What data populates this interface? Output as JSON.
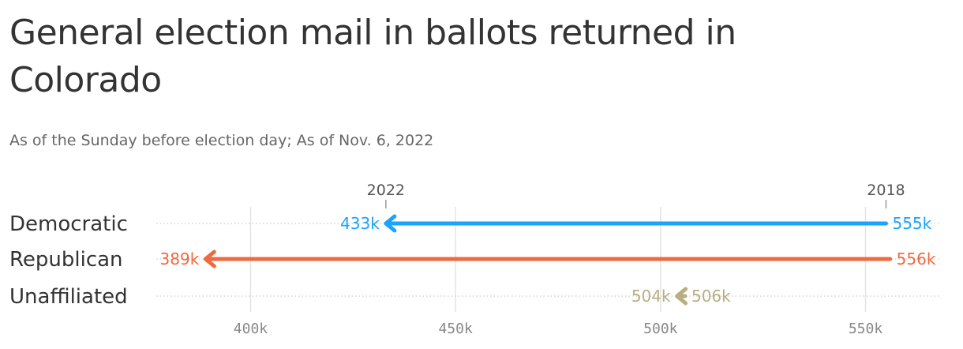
{
  "header": {
    "title": "General election mail in ballots returned in Colorado",
    "subtitle": "As of the Sunday before election day; As of Nov. 6, 2022"
  },
  "chart_data": {
    "type": "arrow",
    "categories": [
      "Democratic",
      "Republican",
      "Unaffiliated"
    ],
    "series": [
      {
        "name": "2018",
        "values": [
          555,
          556,
          506
        ]
      },
      {
        "name": "2022",
        "values": [
          433,
          389,
          504
        ]
      }
    ],
    "value_labels": {
      "2018": [
        "555k",
        "556k",
        "506k"
      ],
      "2022": [
        "433k",
        "389k",
        "504k"
      ]
    },
    "year_markers": [
      {
        "label": "2022",
        "value": 433
      },
      {
        "label": "2018",
        "value": 555
      }
    ],
    "x_ticks": [
      400,
      450,
      500,
      550
    ],
    "x_tick_labels": [
      "400k",
      "450k",
      "500k",
      "550k"
    ],
    "xlim": [
      377,
      568
    ],
    "colors": [
      "#1aa3ff",
      "#ee6a40",
      "#b9ad82"
    ],
    "grid": true
  }
}
